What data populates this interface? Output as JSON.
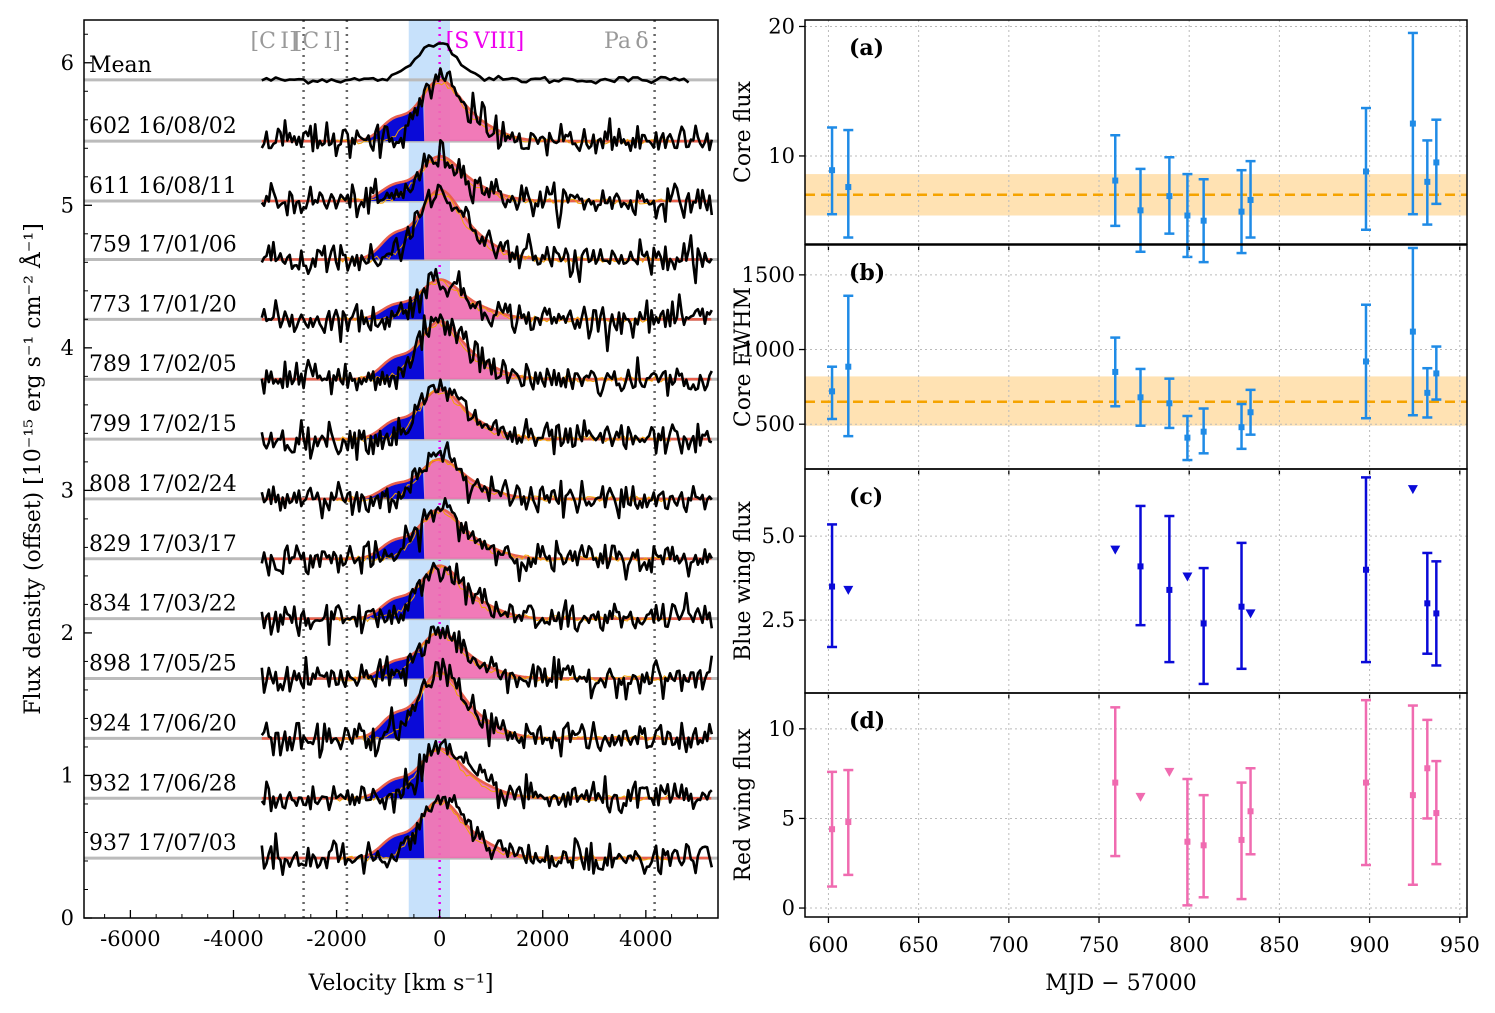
{
  "colors": {
    "core": "#1f8be6",
    "blue": "#0a0ad8",
    "red": "#f06bb0",
    "ref": "#f5a300",
    "band_ref": "#ffe2b3",
    "svband": "#c7e1fb",
    "grey": "#bbbbbb",
    "fit": "#e8604d",
    "spectrum": "#000000",
    "magenta": "#ee00ee"
  },
  "chart_data": [
    {
      "type": "line",
      "id": "spectra",
      "xlabel": "Velocity [km s⁻¹]",
      "ylabel": "Flux density (offset) [10⁻¹⁵ erg s⁻¹ cm⁻² Å⁻¹]",
      "xlim": [
        -6900,
        5400
      ],
      "ylim": [
        0,
        6.3
      ],
      "xticks": [
        -6000,
        -4000,
        -2000,
        0,
        2000,
        4000
      ],
      "xtick_labels": [
        "-6000",
        "-4000",
        "-2000",
        "0",
        "2000",
        "4000"
      ],
      "yticks": [
        0,
        1,
        2,
        3,
        4,
        5,
        6
      ],
      "ytick_labels": [
        "0",
        "1",
        "2",
        "3",
        "4",
        "5",
        "6"
      ],
      "line_markers": [
        {
          "name": "[C I]",
          "velocity": -2640
        },
        {
          "name": "[C I]",
          "velocity": -1800
        },
        {
          "name": "[S VIII]",
          "velocity": 0
        },
        {
          "name": "Pa δ",
          "velocity": 4170
        }
      ],
      "shaded_velocity_range": [
        -600,
        200
      ],
      "series": [
        {
          "label": "Mean",
          "offset": 5.88,
          "peak": 0.27
        },
        {
          "label": "602 16/08/02",
          "offset": 5.45,
          "peak": 0.37
        },
        {
          "label": "611 16/08/11",
          "offset": 5.03,
          "peak": 0.27
        },
        {
          "label": "759 17/01/06",
          "offset": 4.62,
          "peak": 0.42
        },
        {
          "label": "773 17/01/20",
          "offset": 4.2,
          "peak": 0.24
        },
        {
          "label": "789 17/02/05",
          "offset": 3.78,
          "peak": 0.35
        },
        {
          "label": "799 17/02/15",
          "offset": 3.36,
          "peak": 0.3
        },
        {
          "label": "808 17/02/24",
          "offset": 2.94,
          "peak": 0.24
        },
        {
          "label": "829 17/03/17",
          "offset": 2.52,
          "peak": 0.3
        },
        {
          "label": "834 17/03/22",
          "offset": 2.1,
          "peak": 0.32
        },
        {
          "label": "898 17/05/25",
          "offset": 1.68,
          "peak": 0.28
        },
        {
          "label": "924 17/06/20",
          "offset": 1.26,
          "peak": 0.4
        },
        {
          "label": "932 17/06/28",
          "offset": 0.84,
          "peak": 0.3
        },
        {
          "label": "937 17/07/03",
          "offset": 0.42,
          "peak": 0.35
        }
      ]
    },
    {
      "type": "scatter",
      "id": "core_flux",
      "panel_label": "(a)",
      "ylabel": "Core flux",
      "ylim": [
        3.2,
        20.5
      ],
      "yticks": [
        10,
        20
      ],
      "ytick_labels": [
        "10",
        "20"
      ],
      "ref_line": 7.0,
      "ref_band": [
        5.4,
        8.6
      ],
      "points": [
        {
          "x": 602,
          "y": 8.9,
          "lo": 5.5,
          "hi": 12.2
        },
        {
          "x": 611,
          "y": 7.6,
          "lo": 3.7,
          "hi": 12.0
        },
        {
          "x": 759,
          "y": 8.1,
          "lo": 4.6,
          "hi": 11.6
        },
        {
          "x": 773,
          "y": 5.8,
          "lo": 2.6,
          "hi": 9.0
        },
        {
          "x": 789,
          "y": 6.9,
          "lo": 4.0,
          "hi": 9.9
        },
        {
          "x": 799,
          "y": 5.4,
          "lo": 2.2,
          "hi": 8.6
        },
        {
          "x": 808,
          "y": 5.0,
          "lo": 1.8,
          "hi": 8.2
        },
        {
          "x": 829,
          "y": 5.7,
          "lo": 2.5,
          "hi": 8.9
        },
        {
          "x": 834,
          "y": 6.6,
          "lo": 3.7,
          "hi": 9.6
        },
        {
          "x": 898,
          "y": 8.8,
          "lo": 4.3,
          "hi": 13.7
        },
        {
          "x": 924,
          "y": 12.5,
          "lo": 5.5,
          "hi": 19.5
        },
        {
          "x": 932,
          "y": 8.0,
          "lo": 4.7,
          "hi": 11.2
        },
        {
          "x": 937,
          "y": 9.5,
          "lo": 6.3,
          "hi": 12.8
        }
      ]
    },
    {
      "type": "scatter",
      "id": "core_fwhm",
      "panel_label": "(b)",
      "ylabel": "Core FWHM",
      "ylim": [
        200,
        1700
      ],
      "yticks": [
        500,
        1000,
        1500
      ],
      "ytick_labels": [
        "500",
        "1000",
        "1500"
      ],
      "ref_line": 650,
      "ref_band": [
        490,
        820
      ],
      "points": [
        {
          "x": 602,
          "y": 720,
          "lo": 535,
          "hi": 885
        },
        {
          "x": 611,
          "y": 885,
          "lo": 420,
          "hi": 1360
        },
        {
          "x": 759,
          "y": 850,
          "lo": 620,
          "hi": 1080
        },
        {
          "x": 773,
          "y": 680,
          "lo": 490,
          "hi": 870
        },
        {
          "x": 789,
          "y": 640,
          "lo": 475,
          "hi": 805
        },
        {
          "x": 799,
          "y": 410,
          "lo": 260,
          "hi": 555
        },
        {
          "x": 808,
          "y": 450,
          "lo": 305,
          "hi": 605
        },
        {
          "x": 829,
          "y": 480,
          "lo": 335,
          "hi": 635
        },
        {
          "x": 834,
          "y": 580,
          "lo": 430,
          "hi": 730
        },
        {
          "x": 898,
          "y": 920,
          "lo": 540,
          "hi": 1300
        },
        {
          "x": 924,
          "y": 1120,
          "lo": 560,
          "hi": 1680
        },
        {
          "x": 932,
          "y": 710,
          "lo": 545,
          "hi": 875
        },
        {
          "x": 937,
          "y": 840,
          "lo": 665,
          "hi": 1020
        }
      ]
    },
    {
      "type": "scatter",
      "id": "blue_wing",
      "panel_label": "(c)",
      "ylabel": "Blue wing flux",
      "ylim": [
        0.33,
        7.0
      ],
      "yticks": [
        2.5,
        5.0
      ],
      "ytick_labels": [
        "2.5",
        "5.0"
      ],
      "points": [
        {
          "x": 602,
          "y": 3.5,
          "lo": 1.7,
          "hi": 5.35
        },
        {
          "x": 773,
          "y": 4.1,
          "lo": 2.35,
          "hi": 5.9
        },
        {
          "x": 789,
          "y": 3.4,
          "lo": 1.25,
          "hi": 5.6
        },
        {
          "x": 808,
          "y": 2.4,
          "lo": 0.6,
          "hi": 4.05
        },
        {
          "x": 829,
          "y": 2.9,
          "lo": 1.05,
          "hi": 4.8
        },
        {
          "x": 898,
          "y": 4.0,
          "lo": 1.25,
          "hi": 6.75
        },
        {
          "x": 932,
          "y": 3.0,
          "lo": 1.5,
          "hi": 4.5
        },
        {
          "x": 937,
          "y": 2.7,
          "lo": 1.15,
          "hi": 4.25
        }
      ],
      "upper_limits": [
        {
          "x": 611,
          "y": 3.4
        },
        {
          "x": 759,
          "y": 4.6
        },
        {
          "x": 799,
          "y": 3.8
        },
        {
          "x": 834,
          "y": 2.7
        },
        {
          "x": 924,
          "y": 6.4
        }
      ]
    },
    {
      "type": "scatter",
      "id": "red_wing",
      "panel_label": "(d)",
      "ylabel": "Red wing flux",
      "xlabel": "MJD − 57000",
      "xlim": [
        587,
        954
      ],
      "xticks": [
        600,
        650,
        700,
        750,
        800,
        850,
        900,
        950
      ],
      "xtick_labels": [
        "600",
        "650",
        "700",
        "750",
        "800",
        "850",
        "900",
        "950"
      ],
      "ylim": [
        -0.5,
        12.0
      ],
      "yticks": [
        0,
        5,
        10
      ],
      "ytick_labels": [
        "0",
        "5",
        "10"
      ],
      "points": [
        {
          "x": 602,
          "y": 4.4,
          "lo": 1.2,
          "hi": 7.6
        },
        {
          "x": 611,
          "y": 4.8,
          "lo": 1.85,
          "hi": 7.7
        },
        {
          "x": 759,
          "y": 7.0,
          "lo": 2.9,
          "hi": 11.2
        },
        {
          "x": 799,
          "y": 3.7,
          "lo": 0.15,
          "hi": 7.2
        },
        {
          "x": 808,
          "y": 3.5,
          "lo": 0.6,
          "hi": 6.3
        },
        {
          "x": 829,
          "y": 3.8,
          "lo": 0.5,
          "hi": 7.0
        },
        {
          "x": 834,
          "y": 5.4,
          "lo": 3.0,
          "hi": 7.8
        },
        {
          "x": 898,
          "y": 7.0,
          "lo": 2.4,
          "hi": 11.6
        },
        {
          "x": 924,
          "y": 6.3,
          "lo": 1.3,
          "hi": 11.3
        },
        {
          "x": 932,
          "y": 7.8,
          "lo": 5.0,
          "hi": 10.5
        },
        {
          "x": 937,
          "y": 5.3,
          "lo": 2.45,
          "hi": 8.2
        }
      ],
      "upper_limits": [
        {
          "x": 773,
          "y": 6.2
        },
        {
          "x": 789,
          "y": 7.6
        }
      ]
    }
  ]
}
